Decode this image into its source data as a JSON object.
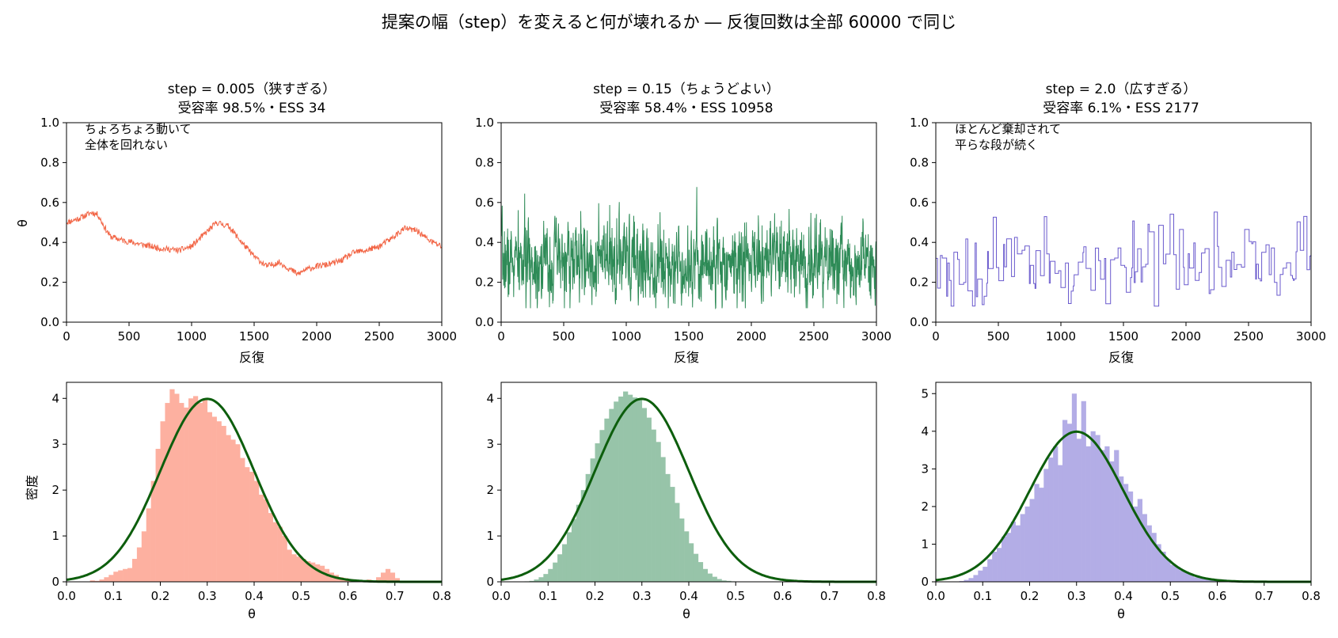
{
  "figure": {
    "suptitle": "提案の幅（step）を変えると何が壊れるか ― 反復回数は全部 60000 で同じ",
    "trace_xlabel": "反復",
    "trace_ylabel": "θ",
    "hist_xlabel": "θ",
    "hist_ylabel": "密度",
    "theory_color": "#0d5e0d"
  },
  "panels": [
    {
      "title_line1": "step = 0.005（狭すぎる）",
      "title_line2": "受容率 98.5%・ESS 34",
      "annotation_line1": "ちょろちょろ動いて",
      "annotation_line2": "全体を回れない",
      "color": "#f26444",
      "hist_color": "#fdb0a0"
    },
    {
      "title_line1": "step = 0.15（ちょうどよい）",
      "title_line2": "受容率 58.4%・ESS 10958",
      "annotation_line1": "",
      "annotation_line2": "",
      "color": "#2e8b57",
      "hist_color": "#97c4a9"
    },
    {
      "title_line1": "step = 2.0（広すぎる）",
      "title_line2": "受容率 6.1%・ESS 2177",
      "annotation_line1": "ほとんど棄却されて",
      "annotation_line2": "平らな段が続く",
      "color": "#6a5acd",
      "hist_color": "#b3ade6"
    }
  ],
  "chart_data": [
    {
      "type": "line",
      "panel": "trace-narrow",
      "xlim": [
        0,
        3000
      ],
      "ylim": [
        0,
        1
      ],
      "xticks": [
        0,
        500,
        1000,
        1500,
        2000,
        2500,
        3000
      ],
      "yticks": [
        0.0,
        0.2,
        0.4,
        0.6,
        0.8,
        1.0
      ],
      "x": [
        0,
        100,
        200,
        250,
        300,
        350,
        450,
        600,
        750,
        900,
        1000,
        1100,
        1200,
        1300,
        1400,
        1500,
        1600,
        1700,
        1800,
        1850,
        1900,
        2000,
        2100,
        2200,
        2300,
        2400,
        2500,
        2600,
        2700,
        2800,
        2900,
        3000
      ],
      "y": [
        0.5,
        0.52,
        0.55,
        0.54,
        0.48,
        0.43,
        0.41,
        0.39,
        0.37,
        0.36,
        0.38,
        0.44,
        0.5,
        0.48,
        0.4,
        0.33,
        0.28,
        0.3,
        0.26,
        0.24,
        0.26,
        0.28,
        0.29,
        0.31,
        0.35,
        0.36,
        0.38,
        0.42,
        0.47,
        0.46,
        0.41,
        0.38
      ]
    },
    {
      "type": "line",
      "panel": "trace-good",
      "xlim": [
        0,
        3000
      ],
      "ylim": [
        0,
        1
      ],
      "xticks": [
        0,
        500,
        1000,
        1500,
        2000,
        2500,
        3000
      ],
      "yticks": [
        0.0,
        0.2,
        0.4,
        0.6,
        0.8,
        1.0
      ],
      "mean": 0.3,
      "sd": 0.1,
      "min": 0.07,
      "max": 0.71,
      "iterations": 3000
    },
    {
      "type": "line",
      "panel": "trace-wide",
      "xlim": [
        0,
        3000
      ],
      "ylim": [
        0,
        1
      ],
      "xticks": [
        0,
        500,
        1000,
        1500,
        2000,
        2500,
        3000
      ],
      "yticks": [
        0.0,
        0.2,
        0.4,
        0.6,
        0.8,
        1.0
      ],
      "mean": 0.3,
      "sd": 0.1,
      "min": 0.08,
      "max": 0.63,
      "iterations": 3000,
      "acceptance": 0.061
    },
    {
      "type": "bar",
      "panel": "hist-narrow",
      "xlim": [
        0,
        0.8
      ],
      "ylim": [
        0,
        4.35
      ],
      "xticks": [
        0.0,
        0.1,
        0.2,
        0.3,
        0.4,
        0.5,
        0.6,
        0.7,
        0.8
      ],
      "yticks": [
        0,
        1,
        2,
        3,
        4
      ],
      "bin_start": 0.05,
      "bin_width": 0.01,
      "values": [
        0.03,
        0.02,
        0.05,
        0.1,
        0.15,
        0.22,
        0.25,
        0.28,
        0.3,
        0.5,
        0.75,
        1.1,
        1.6,
        2.2,
        2.9,
        3.5,
        3.9,
        4.2,
        4.1,
        3.9,
        3.8,
        4.0,
        4.05,
        3.9,
        4.0,
        3.7,
        3.6,
        3.5,
        3.4,
        3.2,
        3.1,
        3.0,
        2.7,
        2.5,
        2.4,
        2.2,
        1.9,
        1.8,
        1.5,
        1.3,
        1.2,
        1.0,
        0.7,
        0.6,
        0.55,
        0.5,
        0.45,
        0.42,
        0.38,
        0.35,
        0.28,
        0.2,
        0.15,
        0.1,
        0.08,
        0.06,
        0.04,
        0.03,
        0.03,
        0.05,
        0.02,
        0.1,
        0.2,
        0.28,
        0.2,
        0.08,
        0.02
      ],
      "theory_mean": 0.3,
      "theory_sd": 0.1
    },
    {
      "type": "bar",
      "panel": "hist-good",
      "xlim": [
        0,
        0.8
      ],
      "ylim": [
        0,
        4.35
      ],
      "xticks": [
        0.0,
        0.1,
        0.2,
        0.3,
        0.4,
        0.5,
        0.6,
        0.7,
        0.8
      ],
      "yticks": [
        0,
        1,
        2,
        3,
        4
      ],
      "bin_start": 0.05,
      "bin_width": 0.01,
      "values": [
        0.01,
        0.02,
        0.05,
        0.1,
        0.17,
        0.28,
        0.42,
        0.6,
        0.82,
        1.08,
        1.37,
        1.68,
        2.0,
        2.35,
        2.69,
        3.02,
        3.31,
        3.56,
        3.77,
        3.93,
        4.04,
        4.15,
        4.08,
        4.02,
        3.96,
        3.79,
        3.58,
        3.32,
        3.05,
        2.72,
        2.35,
        2.07,
        1.72,
        1.38,
        1.1,
        0.84,
        0.61,
        0.43,
        0.28,
        0.18,
        0.11,
        0.06,
        0.03,
        0.02,
        0.01
      ],
      "theory_mean": 0.3,
      "theory_sd": 0.1
    },
    {
      "type": "bar",
      "panel": "hist-wide",
      "xlim": [
        0,
        0.8
      ],
      "ylim": [
        0,
        5.3
      ],
      "xticks": [
        0.0,
        0.1,
        0.2,
        0.3,
        0.4,
        0.5,
        0.6,
        0.7,
        0.8
      ],
      "yticks": [
        0,
        1,
        2,
        3,
        4,
        5
      ],
      "bin_start": 0.05,
      "bin_width": 0.01,
      "values": [
        0.02,
        0.05,
        0.1,
        0.18,
        0.3,
        0.4,
        0.6,
        0.8,
        0.9,
        1.2,
        1.3,
        1.6,
        1.5,
        1.8,
        2.0,
        2.2,
        2.6,
        2.5,
        3.0,
        3.3,
        3.6,
        3.1,
        4.3,
        4.2,
        5.0,
        3.8,
        4.8,
        3.6,
        4.0,
        3.9,
        3.5,
        3.6,
        3.2,
        3.5,
        2.8,
        2.6,
        2.4,
        2.0,
        2.2,
        1.8,
        1.5,
        1.3,
        1.0,
        0.8,
        0.6,
        0.45,
        0.4,
        0.3,
        0.25,
        0.2,
        0.12,
        0.1,
        0.08,
        0.05,
        0.03,
        0.05,
        0.06,
        0.04,
        0.02
      ],
      "theory_mean": 0.3,
      "theory_sd": 0.1
    }
  ]
}
